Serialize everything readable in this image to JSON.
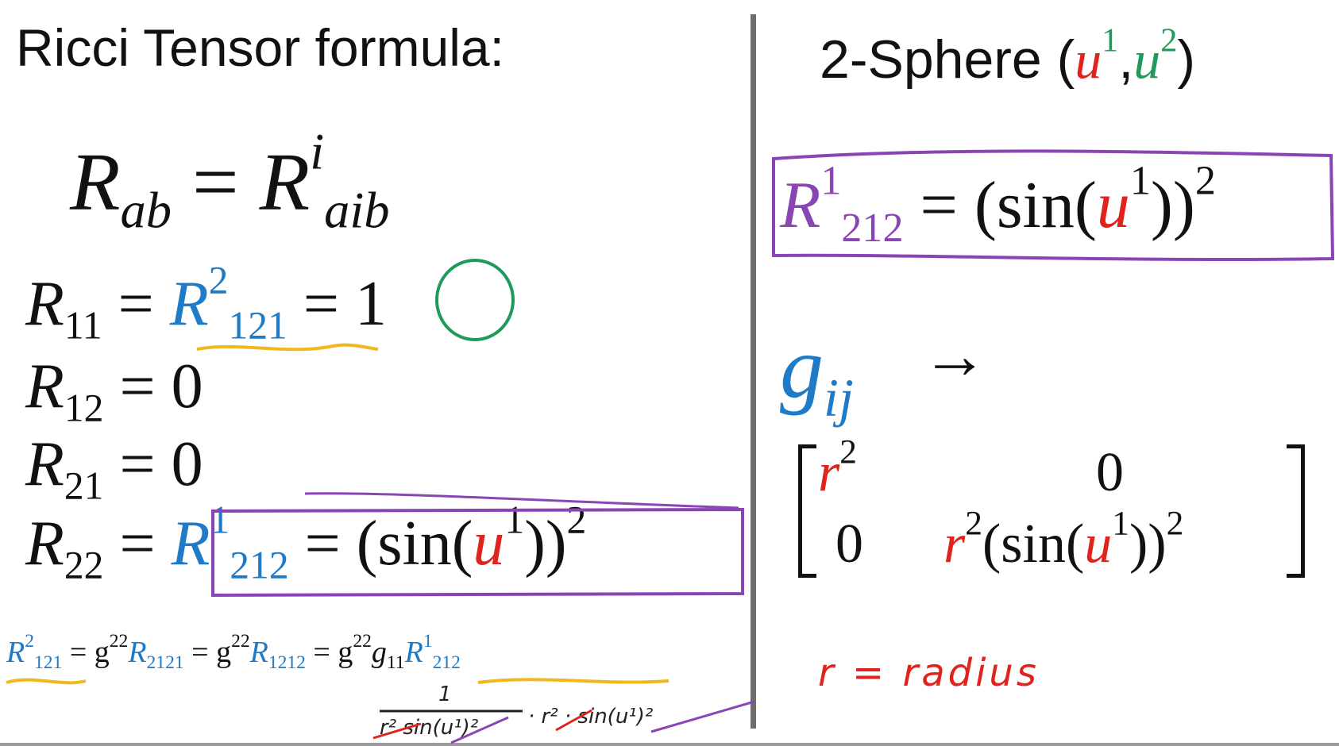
{
  "left": {
    "title": "Ricci Tensor formula:",
    "main_formula": {
      "lhs_base": "R",
      "lhs_sub": "ab",
      "eq": "=",
      "rhs_base": "R",
      "rhs_sup": "i",
      "rhs_sub": "aib"
    },
    "rows": [
      {
        "base": "R",
        "sub": "11",
        "eq": "=",
        "t_base": "R",
        "t_sup": "2",
        "t_sub": "121",
        "eq2": "=",
        "result": "1"
      },
      {
        "base": "R",
        "sub": "12",
        "eq": "=",
        "value": "0"
      },
      {
        "base": "R",
        "sub": "21",
        "eq": "=",
        "value": "0"
      },
      {
        "base": "R",
        "sub": "22",
        "eq": "=",
        "t_base": "R",
        "t_sup": "1",
        "t_sub": "212",
        "eq2": "=",
        "open": "(sin(",
        "u": "u",
        "u_sup": "1",
        "close": "))",
        "pow": "2"
      }
    ],
    "derivation": {
      "lhs_base": "R",
      "lhs_sup": "2",
      "lhs_sub": "121",
      "eq1": "=",
      "g1": "g",
      "g1_sup": "22",
      "r1_base": "R",
      "r1_sub": "2121",
      "eq2": "=",
      "g2": "g",
      "g2_sup": "22",
      "r2_base": "R",
      "r2_sub": "1212",
      "eq3": "=",
      "g3": "g",
      "g3_sup": "22",
      "g4": "g",
      "g4_sub": "11",
      "r3_base": "R",
      "r3_sup": "1",
      "r3_sub": "212"
    },
    "handwritten_fraction": {
      "numerator": "1",
      "denominator": "r² sin(u¹)²",
      "tail": "· r² · sin(u¹)²"
    }
  },
  "right": {
    "title_text": "2-Sphere (",
    "title_u1": "u",
    "title_u1_sup": "1",
    "comma": ",",
    "title_u2": "u",
    "title_u2_sup": "2",
    "title_close": ")",
    "boxed": {
      "base": "R",
      "sup": "1",
      "sub": "212",
      "eq": "=",
      "open": "(sin(",
      "u": "u",
      "u_sup": "1",
      "close": "))",
      "pow": "2"
    },
    "metric_label": {
      "base": "g",
      "sub": "ij",
      "arrow": "→"
    },
    "matrix": {
      "a11_r": "r",
      "a11_sup": "2",
      "a12": "0",
      "a21": "0",
      "a22_r": "r",
      "a22_sup": "2",
      "a22_open": "(sin(",
      "a22_u": "u",
      "a22_u_sup": "1",
      "a22_close": "))",
      "a22_pow": "2"
    },
    "note": "r = radius"
  },
  "colors": {
    "red": "#e0231c",
    "green": "#1e9a5a",
    "blue": "#1f7ac8",
    "purple": "#8a45b5",
    "yellow": "#f2b71c",
    "divider": "#6e6e6e"
  }
}
